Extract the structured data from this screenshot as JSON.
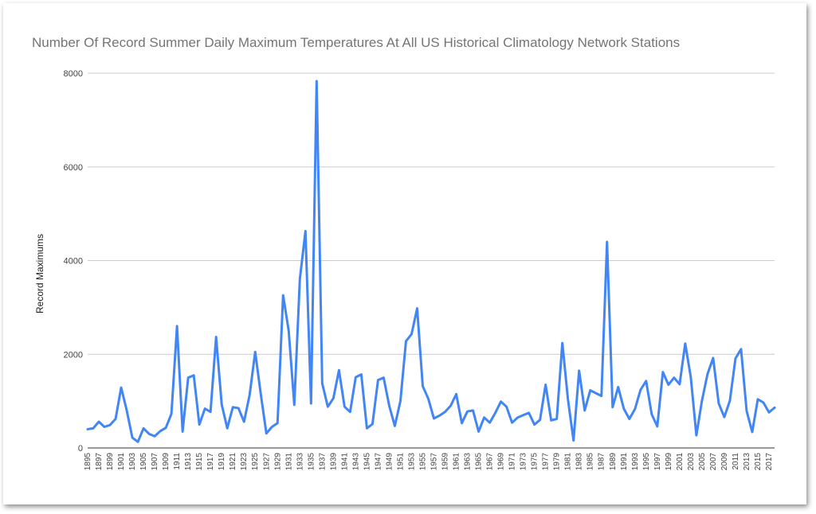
{
  "chart_data": {
    "type": "line",
    "title": "Number Of Record Summer Daily Maximum Temperatures At All US Historical Climatology Network Stations",
    "xlabel": "",
    "ylabel": "Record Maximums",
    "ylim": [
      0,
      8000
    ],
    "yticks": [
      "0",
      "2000",
      "4000",
      "6000",
      "8000"
    ],
    "xtick_labels": [
      "1895",
      "1897",
      "1899",
      "1901",
      "1903",
      "1905",
      "1907",
      "1909",
      "1911",
      "1913",
      "1915",
      "1917",
      "1919",
      "1921",
      "1923",
      "1925",
      "1927",
      "1929",
      "1931",
      "1933",
      "1935",
      "1937",
      "1939",
      "1941",
      "1943",
      "1945",
      "1947",
      "1949",
      "1951",
      "1953",
      "1955",
      "1957",
      "1959",
      "1961",
      "1963",
      "1965",
      "1967",
      "1969",
      "1971",
      "1973",
      "1975",
      "1977",
      "1979",
      "1981",
      "1983",
      "1985",
      "1987",
      "1989",
      "1991",
      "1993",
      "1995",
      "1997",
      "1999",
      "2001",
      "2003",
      "2005",
      "2007",
      "2009",
      "2011",
      "2013",
      "2015",
      "2017"
    ],
    "grid": true,
    "line_color": "#4285f4",
    "series": [
      {
        "x": [
          1895,
          1896,
          1897,
          1898,
          1899,
          1900,
          1901,
          1902,
          1903,
          1904,
          1905,
          1906,
          1907,
          1908,
          1909,
          1910,
          1911,
          1912,
          1913,
          1914,
          1915,
          1916,
          1917,
          1918,
          1919,
          1920,
          1921,
          1922,
          1923,
          1924,
          1925,
          1926,
          1927,
          1928,
          1929,
          1930,
          1931,
          1932,
          1933,
          1934,
          1935,
          1936,
          1937,
          1938,
          1939,
          1940,
          1941,
          1942,
          1943,
          1944,
          1945,
          1946,
          1947,
          1948,
          1949,
          1950,
          1951,
          1952,
          1953,
          1954,
          1955,
          1956,
          1957,
          1958,
          1959,
          1960,
          1961,
          1962,
          1963,
          1964,
          1965,
          1966,
          1967,
          1968,
          1969,
          1970,
          1971,
          1972,
          1973,
          1974,
          1975,
          1976,
          1977,
          1978,
          1979,
          1980,
          1981,
          1982,
          1983,
          1984,
          1985,
          1986,
          1987,
          1988,
          1989,
          1990,
          1991,
          1992,
          1993,
          1994,
          1995,
          1996,
          1997,
          1998,
          1999,
          2000,
          2001,
          2002,
          2003,
          2004,
          2005,
          2006,
          2007,
          2008,
          2009,
          2010,
          2011,
          2012,
          2013,
          2014,
          2015,
          2016,
          2017,
          2018
        ],
        "values": [
          400,
          420,
          560,
          450,
          490,
          620,
          1290,
          800,
          220,
          130,
          420,
          300,
          250,
          360,
          430,
          730,
          2600,
          350,
          1500,
          1550,
          500,
          840,
          770,
          2370,
          930,
          420,
          870,
          850,
          560,
          1130,
          2050,
          1150,
          310,
          450,
          530,
          3260,
          2500,
          920,
          3610,
          4630,
          950,
          7830,
          1380,
          880,
          1060,
          1660,
          880,
          770,
          1510,
          1570,
          420,
          510,
          1450,
          1500,
          900,
          470,
          1000,
          2280,
          2430,
          2980,
          1320,
          1050,
          630,
          690,
          770,
          900,
          1150,
          530,
          780,
          800,
          350,
          650,
          540,
          750,
          990,
          880,
          540,
          650,
          700,
          750,
          500,
          600,
          1350,
          590,
          620,
          2240,
          1040,
          160,
          1650,
          800,
          1230,
          1170,
          1110,
          4400,
          870,
          1300,
          840,
          620,
          830,
          1240,
          1430,
          720,
          460,
          1620,
          1350,
          1500,
          1360,
          2230,
          1510,
          270,
          1010,
          1580,
          1920,
          950,
          660,
          1010,
          1910,
          2110,
          790,
          340,
          1040,
          970,
          760,
          860
        ]
      }
    ]
  }
}
